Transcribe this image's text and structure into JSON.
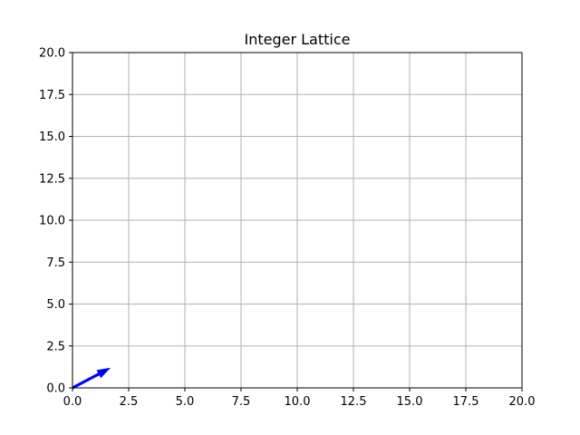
{
  "chart_data": {
    "type": "quiver",
    "title": "Integer Lattice",
    "xlabel": "",
    "ylabel": "",
    "xlim": [
      0,
      20
    ],
    "ylim": [
      0,
      20
    ],
    "xticks": [
      0,
      2.5,
      5,
      7.5,
      10,
      12.5,
      15,
      17.5,
      20
    ],
    "yticks": [
      0,
      2.5,
      5,
      7.5,
      10,
      12.5,
      15,
      17.5,
      20
    ],
    "xtick_labels": [
      "0.0",
      "2.5",
      "5.0",
      "7.5",
      "10.0",
      "12.5",
      "15.0",
      "17.5",
      "20.0"
    ],
    "ytick_labels": [
      "0.0",
      "2.5",
      "5.0",
      "7.5",
      "10.0",
      "12.5",
      "15.0",
      "17.5",
      "20.0"
    ],
    "grid": true,
    "vectors": [
      {
        "x": 0,
        "y": 0,
        "dx": 1.7,
        "dy": 1.2,
        "color": "#0000ff"
      }
    ]
  },
  "colors": {
    "grid": "#b0b0b0",
    "axes": "#000000",
    "arrow": "#0000ff"
  }
}
